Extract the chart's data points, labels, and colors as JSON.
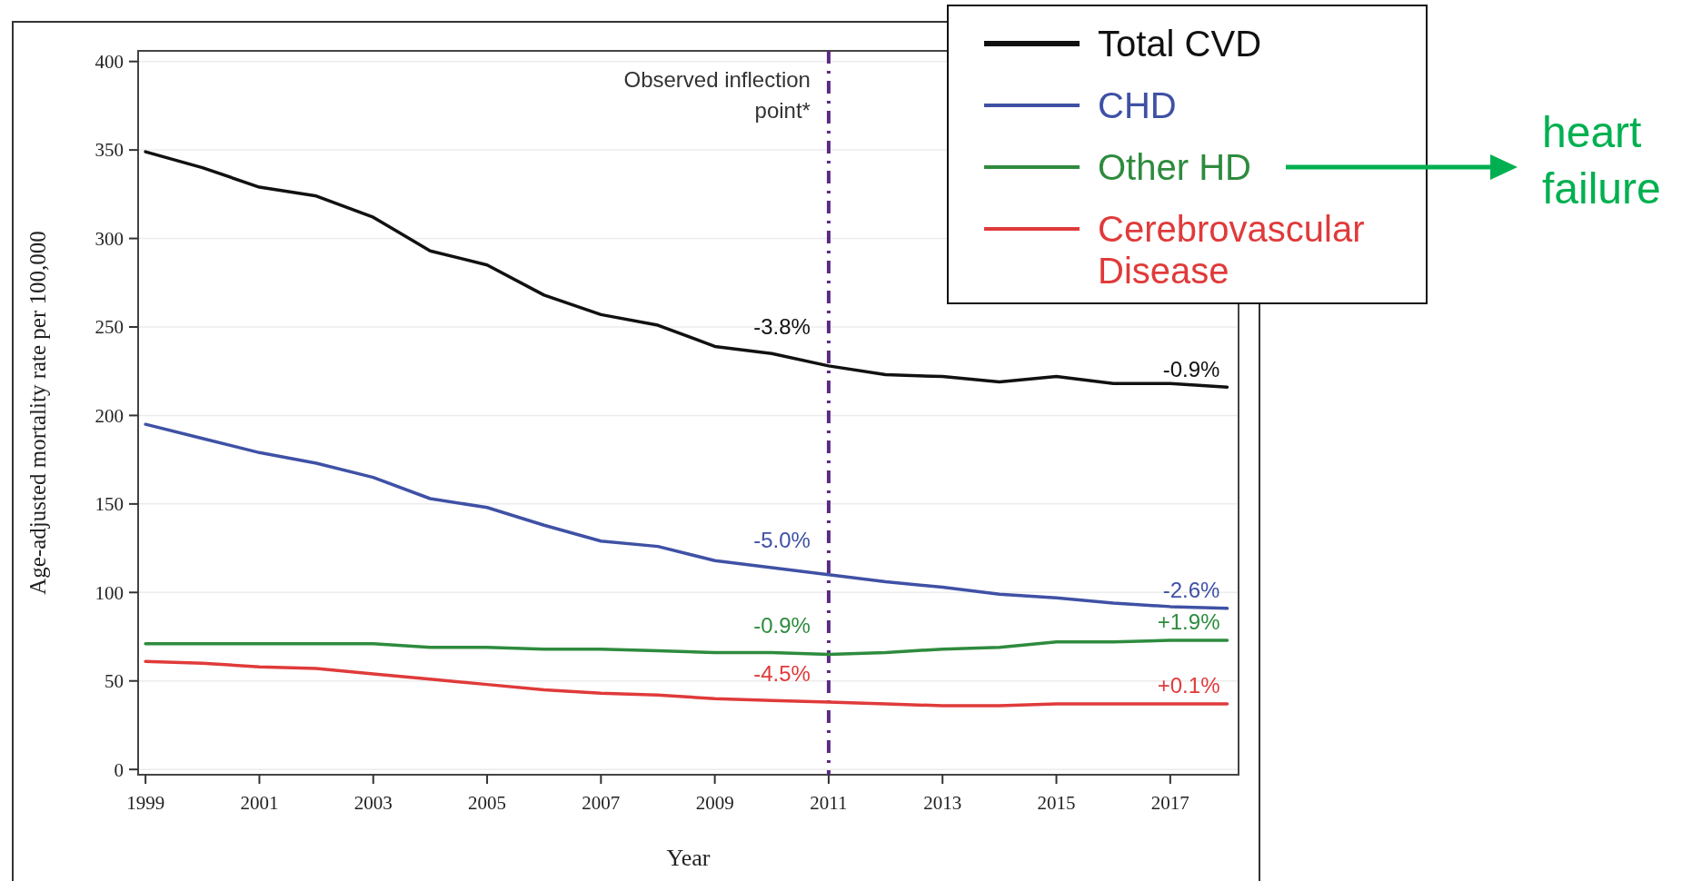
{
  "chart_data": {
    "type": "line",
    "xlabel": "Year",
    "ylabel": "Age-adjusted mortality rate per 100,000",
    "x": [
      1999,
      2000,
      2001,
      2002,
      2003,
      2004,
      2005,
      2006,
      2007,
      2008,
      2009,
      2010,
      2011,
      2012,
      2013,
      2014,
      2015,
      2016,
      2017,
      2018
    ],
    "xlim": [
      1998.87,
      2018.2
    ],
    "xticks": [
      1999,
      2001,
      2003,
      2005,
      2007,
      2009,
      2011,
      2013,
      2015,
      2017
    ],
    "ylim": [
      -3,
      406
    ],
    "yticks": [
      0,
      50,
      100,
      150,
      200,
      250,
      300,
      350,
      400
    ],
    "grid": "y",
    "legend": "top right",
    "line_style": "solid",
    "series": [
      {
        "name": "Total CVD",
        "color": "#111111",
        "values": [
          349,
          340,
          329,
          324,
          312,
          293,
          285,
          268,
          257,
          251,
          239,
          235,
          228,
          223,
          222,
          219,
          222,
          218,
          218,
          216
        ]
      },
      {
        "name": "CHD",
        "color": "#3f51a5",
        "values": [
          195,
          187,
          179,
          173,
          165,
          153,
          148,
          138,
          129,
          126,
          118,
          114,
          110,
          106,
          103,
          99,
          97,
          94,
          92,
          91
        ]
      },
      {
        "name": "Other HD",
        "color": "#2e8b3e",
        "values": [
          71,
          71,
          71,
          71,
          71,
          69,
          69,
          68,
          68,
          67,
          66,
          66,
          65,
          66,
          68,
          69,
          72,
          72,
          73,
          73
        ]
      },
      {
        "name": "Cerebrovascular Disease",
        "color": "#e03a3a",
        "values": [
          61,
          60,
          58,
          57,
          54,
          51,
          48,
          45,
          43,
          42,
          40,
          39,
          38,
          37,
          36,
          36,
          37,
          37,
          37,
          37
        ]
      }
    ],
    "ref_lines": [
      {
        "axis": "x",
        "value": 2011,
        "label": "Observed inflection point*",
        "color": "#5b2a86",
        "line_style": "dashdot"
      }
    ],
    "annotations": [
      "-3.8%",
      "-0.9%",
      "-5.0%",
      "-2.6%",
      "-0.9%",
      "+1.9%",
      "-4.5%",
      "+0.1%",
      "heart failure"
    ]
  }
}
